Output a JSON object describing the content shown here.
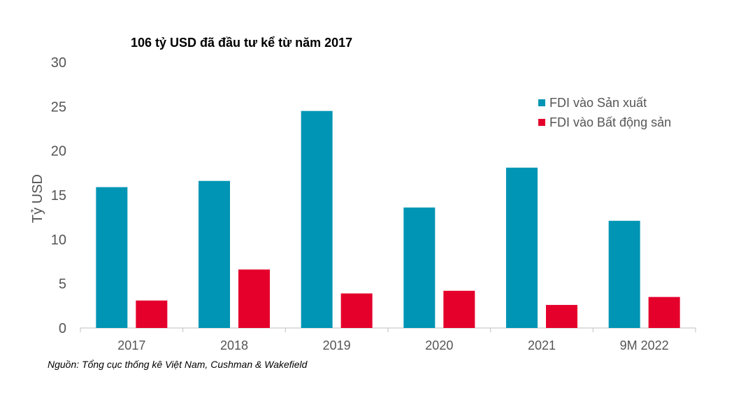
{
  "title": "106 tỷ USD đã đầu tư kể từ năm 2017",
  "source": "Nguồn: Tổng cục thống kê Việt Nam, Cushman & Wakefield",
  "chart_data": {
    "type": "bar",
    "title": "106 tỷ USD đã đầu tư kể từ năm 2017",
    "xlabel": "",
    "ylabel": "Tỷ USD",
    "ylim": [
      0,
      30
    ],
    "yticks": [
      0,
      5,
      10,
      15,
      20,
      25,
      30
    ],
    "grid": false,
    "legend_position": "top-right",
    "categories": [
      "2017",
      "2018",
      "2019",
      "2020",
      "2021",
      "9M 2022"
    ],
    "series": [
      {
        "name": "FDI vào Sản xuất",
        "color": "#0095B4",
        "values": [
          15.9,
          16.6,
          24.5,
          13.6,
          18.1,
          12.1
        ]
      },
      {
        "name": "FDI vào Bất động sản",
        "color": "#E4002B",
        "values": [
          3.1,
          6.6,
          3.9,
          4.2,
          2.6,
          3.5
        ]
      }
    ]
  }
}
